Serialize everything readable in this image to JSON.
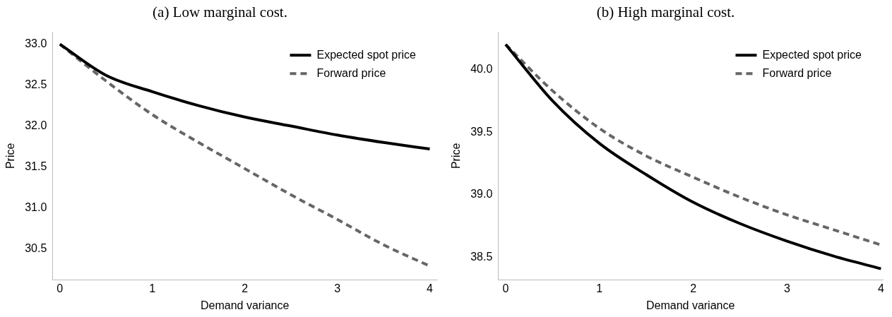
{
  "chart_data": [
    {
      "type": "line",
      "title": "(a) Low marginal cost.",
      "xlabel": "Demand variance",
      "ylabel": "Price",
      "x": [
        0,
        0.5,
        1,
        1.5,
        2,
        2.5,
        3,
        3.5,
        4
      ],
      "xlim": [
        -0.08,
        4.08
      ],
      "xticks": [
        0,
        1,
        2,
        3,
        4
      ],
      "ylim": [
        30.12,
        33.15
      ],
      "yticks": [
        30.5,
        {
          "value": 31,
          "label": "31.0"
        },
        31.5,
        {
          "value": 32,
          "label": "32.0"
        },
        32.5,
        {
          "value": 33,
          "label": "33.0"
        }
      ],
      "grid": false,
      "legend": "top right",
      "marker": "none",
      "series": [
        {
          "name": "Expected spot price",
          "color": "#000000",
          "line_style": "solid",
          "values": [
            33.0,
            32.62,
            32.42,
            32.25,
            32.11,
            32.0,
            31.89,
            31.8,
            31.72
          ]
        },
        {
          "name": "Forward price",
          "color": "#666666",
          "line_style": "dashed",
          "values": [
            33.0,
            32.55,
            32.14,
            31.8,
            31.48,
            31.16,
            30.86,
            30.55,
            30.29
          ]
        }
      ]
    },
    {
      "type": "line",
      "title": "(b) High marginal cost.",
      "xlabel": "Demand variance",
      "ylabel": "Price",
      "x": [
        0,
        0.5,
        1,
        1.5,
        2,
        2.5,
        3,
        3.5,
        4
      ],
      "xlim": [
        -0.08,
        4.02
      ],
      "xticks": [
        0,
        1,
        2,
        3,
        4
      ],
      "ylim": [
        38.32,
        40.3
      ],
      "yticks": [
        38.5,
        {
          "value": 39,
          "label": "39.0"
        },
        39.5,
        {
          "value": 40,
          "label": "40.0"
        }
      ],
      "grid": false,
      "legend": "top right",
      "marker": "none",
      "series": [
        {
          "name": "Expected spot price",
          "color": "#000000",
          "line_style": "solid",
          "values": [
            40.2,
            39.75,
            39.41,
            39.16,
            38.94,
            38.77,
            38.63,
            38.51,
            38.41
          ]
        },
        {
          "name": "Forward price",
          "color": "#666666",
          "line_style": "dashed",
          "values": [
            40.2,
            39.83,
            39.53,
            39.31,
            39.14,
            38.98,
            38.84,
            38.72,
            38.6
          ]
        }
      ]
    }
  ]
}
